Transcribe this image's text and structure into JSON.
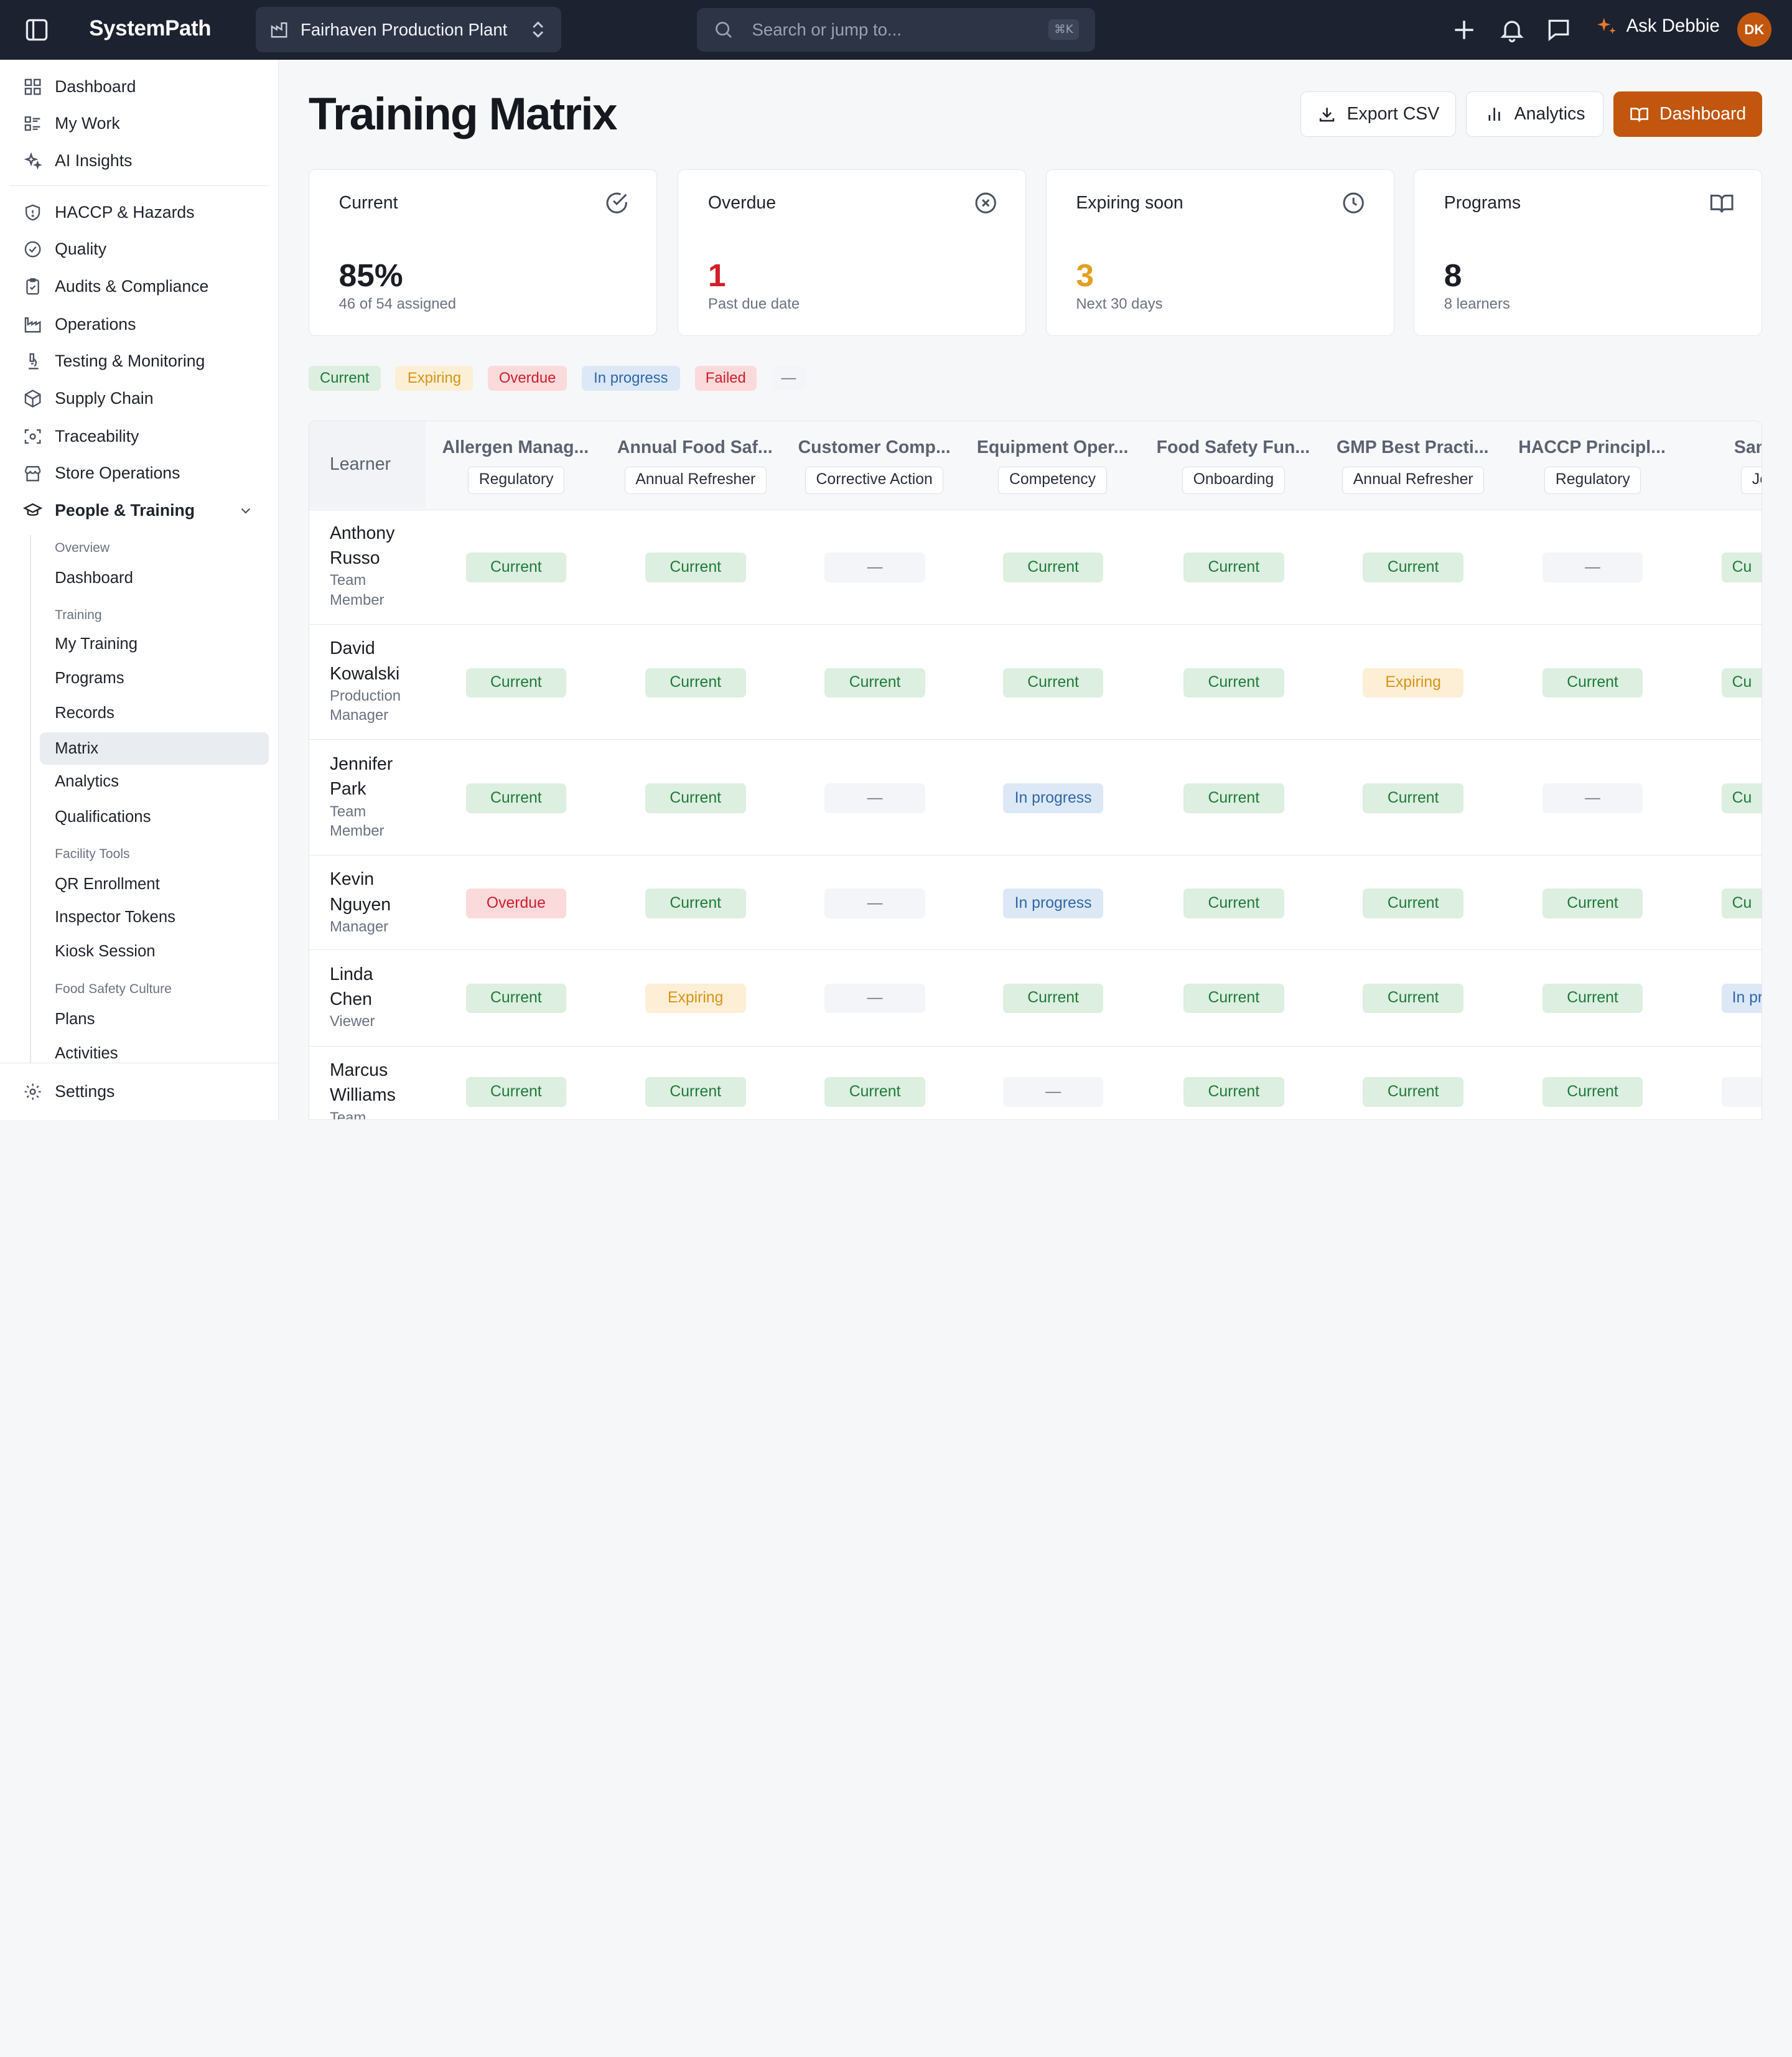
{
  "topbar": {
    "logo": "SystemPath",
    "site": "Fairhaven Production Plant",
    "search_placeholder": "Search or jump to...",
    "search_shortcut": "⌘K",
    "ask_label": "Ask Debbie",
    "avatar_initials": "DK"
  },
  "sidebar": {
    "top_items": [
      {
        "label": "Dashboard",
        "icon": "grid-icon"
      },
      {
        "label": "My Work",
        "icon": "list-icon"
      },
      {
        "label": "AI Insights",
        "icon": "sparkle-icon"
      }
    ],
    "modules": [
      {
        "label": "HACCP & Hazards",
        "icon": "shield-icon"
      },
      {
        "label": "Quality",
        "icon": "check-circle-icon"
      },
      {
        "label": "Audits & Compliance",
        "icon": "clipboard-icon"
      },
      {
        "label": "Operations",
        "icon": "factory-icon"
      },
      {
        "label": "Testing & Monitoring",
        "icon": "flask-icon"
      },
      {
        "label": "Supply Chain",
        "icon": "package-icon"
      },
      {
        "label": "Traceability",
        "icon": "scan-icon"
      },
      {
        "label": "Store Operations",
        "icon": "store-icon"
      },
      {
        "label": "People & Training",
        "icon": "graduation-cap-icon"
      }
    ],
    "sub": {
      "overview_heading": "Overview",
      "overview_items": [
        "Dashboard"
      ],
      "training_heading": "Training",
      "training_items": [
        "My Training",
        "Programs",
        "Records",
        "Matrix",
        "Analytics",
        "Qualifications"
      ],
      "facility_heading": "Facility Tools",
      "facility_items": [
        "QR Enrollment",
        "Inspector Tokens",
        "Kiosk Session"
      ],
      "culture_heading": "Food Safety Culture",
      "culture_items": [
        "Plans",
        "Activities"
      ]
    },
    "settings_label": "Settings"
  },
  "page": {
    "title": "Training Matrix",
    "buttons": {
      "export": "Export CSV",
      "analytics": "Analytics",
      "dashboard": "Dashboard"
    }
  },
  "stats": [
    {
      "label": "Current",
      "value": "85%",
      "sub": "46 of 54 assigned",
      "icon": "check-circle-icon",
      "color": "#1a1d23"
    },
    {
      "label": "Overdue",
      "value": "1",
      "sub": "Past due date",
      "icon": "x-circle-icon",
      "color": "#d21f2a"
    },
    {
      "label": "Expiring soon",
      "value": "3",
      "sub": "Next 30 days",
      "icon": "clock-icon",
      "color": "#e2a020"
    },
    {
      "label": "Programs",
      "value": "8",
      "sub": "8 learners",
      "icon": "book-open-icon",
      "color": "#1a1d23"
    }
  ],
  "legend": [
    "Current",
    "Expiring",
    "Overdue",
    "In progress",
    "Failed",
    "—"
  ],
  "status_colors": {
    "Current": {
      "bg": "#dcefe0",
      "fg": "#1f7a3a"
    },
    "Expiring": {
      "bg": "#fcefd6",
      "fg": "#d99317"
    },
    "Overdue": {
      "bg": "#fbdadc",
      "fg": "#cc1f2c"
    },
    "In progress": {
      "bg": "#dce8f6",
      "fg": "#2e66a8"
    },
    "Failed": {
      "bg": "#fbdadc",
      "fg": "#cc1f2c"
    },
    "—": {
      "bg": "#f3f5f8",
      "fg": "#6b7280"
    }
  },
  "matrix": {
    "learner_header": "Learner",
    "columns": [
      {
        "name": "Allergen Manag...",
        "category": "Regulatory"
      },
      {
        "name": "Annual Food Saf...",
        "category": "Annual Refresher"
      },
      {
        "name": "Customer Comp...",
        "category": "Corrective Action"
      },
      {
        "name": "Equipment Oper...",
        "category": "Competency"
      },
      {
        "name": "Food Safety Fun...",
        "category": "Onboarding"
      },
      {
        "name": "GMP Best Practi...",
        "category": "Annual Refresher"
      },
      {
        "name": "HACCP Principl...",
        "category": "Regulatory"
      },
      {
        "name": "Sanitatio",
        "category": "Job S"
      }
    ],
    "rows": [
      {
        "name": [
          "Anthony",
          "Russo"
        ],
        "role": [
          "Team",
          "Member"
        ],
        "cells": [
          "Current",
          "Current",
          "—",
          "Current",
          "Current",
          "Current",
          "—",
          "Cu"
        ]
      },
      {
        "name": [
          "David",
          "Kowalski"
        ],
        "role": [
          "Production",
          "Manager"
        ],
        "cells": [
          "Current",
          "Current",
          "Current",
          "Current",
          "Current",
          "Expiring",
          "Current",
          "Cu"
        ]
      },
      {
        "name": [
          "Jennifer",
          "Park"
        ],
        "role": [
          "Team",
          "Member"
        ],
        "cells": [
          "Current",
          "Current",
          "—",
          "In progress",
          "Current",
          "Current",
          "—",
          "Cu"
        ]
      },
      {
        "name": [
          "Kevin",
          "Nguyen"
        ],
        "role": [
          "Manager"
        ],
        "cells": [
          "Overdue",
          "Current",
          "—",
          "In progress",
          "Current",
          "Current",
          "Current",
          "Cu"
        ]
      },
      {
        "name": [
          "Linda",
          "Chen"
        ],
        "role": [
          "Viewer"
        ],
        "cells": [
          "Current",
          "Expiring",
          "—",
          "Current",
          "Current",
          "Current",
          "Current",
          "In pr"
        ]
      },
      {
        "name": [
          "Marcus",
          "Williams"
        ],
        "role": [
          "Team"
        ],
        "cells": [
          "Current",
          "Current",
          "Current",
          "—",
          "Current",
          "Current",
          "Current",
          ""
        ]
      }
    ]
  }
}
